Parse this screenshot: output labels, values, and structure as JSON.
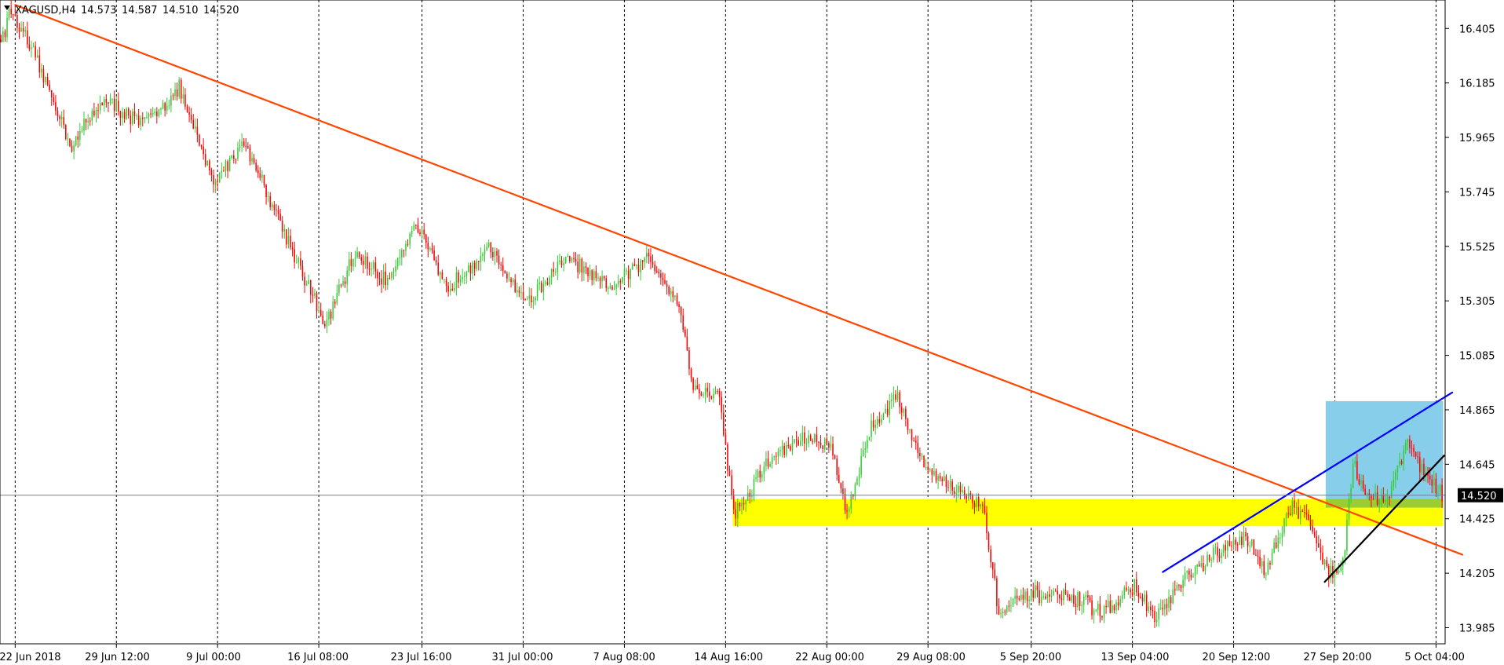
{
  "chart_data": {
    "type": "candlestick",
    "title": "XAGUSD,H4",
    "ohlc": {
      "open": "14.573",
      "high": "14.587",
      "low": "14.510",
      "close": "14.520"
    },
    "current_price": "14.520",
    "y_ticks": [
      "16.405",
      "16.185",
      "15.965",
      "15.745",
      "15.525",
      "15.305",
      "15.085",
      "14.865",
      "14.645",
      "14.425",
      "14.205",
      "13.985"
    ],
    "ylim": [
      13.92,
      16.52
    ],
    "x_ticks": [
      "22 Jun 2018",
      "29 Jun 12:00",
      "9 Jul 00:00",
      "16 Jul 08:00",
      "23 Jul 16:00",
      "31 Jul 00:00",
      "7 Aug 08:00",
      "14 Aug 16:00",
      "22 Aug 00:00",
      "29 Aug 08:00",
      "5 Sep 20:00",
      "13 Sep 04:00",
      "20 Sep 12:00",
      "27 Sep 20:00",
      "5 Oct 04:00"
    ],
    "anchors": [
      {
        "i": 0,
        "p": 16.36
      },
      {
        "i": 5,
        "p": 16.48
      },
      {
        "i": 20,
        "p": 16.23
      },
      {
        "i": 35,
        "p": 15.93
      },
      {
        "i": 50,
        "p": 16.12
      },
      {
        "i": 70,
        "p": 16.02
      },
      {
        "i": 88,
        "p": 16.16
      },
      {
        "i": 105,
        "p": 15.78
      },
      {
        "i": 120,
        "p": 15.95
      },
      {
        "i": 135,
        "p": 15.68
      },
      {
        "i": 150,
        "p": 15.4
      },
      {
        "i": 160,
        "p": 15.2
      },
      {
        "i": 175,
        "p": 15.5
      },
      {
        "i": 190,
        "p": 15.38
      },
      {
        "i": 205,
        "p": 15.62
      },
      {
        "i": 220,
        "p": 15.35
      },
      {
        "i": 240,
        "p": 15.52
      },
      {
        "i": 260,
        "p": 15.3
      },
      {
        "i": 280,
        "p": 15.48
      },
      {
        "i": 300,
        "p": 15.35
      },
      {
        "i": 320,
        "p": 15.48
      },
      {
        "i": 335,
        "p": 15.3
      },
      {
        "i": 342,
        "p": 14.95
      },
      {
        "i": 355,
        "p": 14.92
      },
      {
        "i": 362,
        "p": 14.45
      },
      {
        "i": 368,
        "p": 14.5
      },
      {
        "i": 378,
        "p": 14.65
      },
      {
        "i": 395,
        "p": 14.75
      },
      {
        "i": 410,
        "p": 14.72
      },
      {
        "i": 418,
        "p": 14.45
      },
      {
        "i": 430,
        "p": 14.8
      },
      {
        "i": 443,
        "p": 14.92
      },
      {
        "i": 455,
        "p": 14.65
      },
      {
        "i": 470,
        "p": 14.55
      },
      {
        "i": 485,
        "p": 14.48
      },
      {
        "i": 493,
        "p": 14.05
      },
      {
        "i": 510,
        "p": 14.12
      },
      {
        "i": 530,
        "p": 14.1
      },
      {
        "i": 545,
        "p": 14.05
      },
      {
        "i": 560,
        "p": 14.15
      },
      {
        "i": 570,
        "p": 14.02
      },
      {
        "i": 585,
        "p": 14.18
      },
      {
        "i": 600,
        "p": 14.28
      },
      {
        "i": 615,
        "p": 14.35
      },
      {
        "i": 625,
        "p": 14.22
      },
      {
        "i": 638,
        "p": 14.48
      },
      {
        "i": 648,
        "p": 14.4
      },
      {
        "i": 655,
        "p": 14.2
      },
      {
        "i": 663,
        "p": 14.25
      },
      {
        "i": 668,
        "p": 14.65
      },
      {
        "i": 675,
        "p": 14.52
      },
      {
        "i": 685,
        "p": 14.5
      },
      {
        "i": 695,
        "p": 14.75
      },
      {
        "i": 705,
        "p": 14.58
      },
      {
        "i": 712,
        "p": 14.52
      }
    ],
    "zones": [
      {
        "name": "support-zone",
        "color": "#ffff00",
        "t1": 362,
        "t2": 712,
        "p1": 14.505,
        "p2": 14.395
      },
      {
        "name": "consolidation-box",
        "color": "#87ceeb",
        "t1": 655,
        "t2": 712,
        "p1": 14.9,
        "p2": 14.47
      },
      {
        "name": "box-base",
        "color": "#9acd32",
        "t1": 655,
        "t2": 712,
        "p1": 14.505,
        "p2": 14.47
      }
    ],
    "trendlines": [
      {
        "name": "descending-trendline",
        "color": "#ff4500",
        "width": 2.2,
        "t1": 7,
        "p1": 16.5,
        "t2": 722,
        "p2": 14.28
      },
      {
        "name": "ascending-resistance-line",
        "color": "#0000ff",
        "width": 2.2,
        "t1": 574,
        "p1": 14.21,
        "t2": 717,
        "p2": 14.935
      },
      {
        "name": "ascending-support-line",
        "color": "#000000",
        "width": 2.2,
        "t1": 654,
        "p1": 14.17,
        "t2": 713,
        "p2": 14.68
      }
    ],
    "colors": {
      "bull": "#32cd32",
      "bear": "#ff0000",
      "current_line": "#708090",
      "price_tag": "#000000"
    },
    "grid": "vertical dotted"
  }
}
